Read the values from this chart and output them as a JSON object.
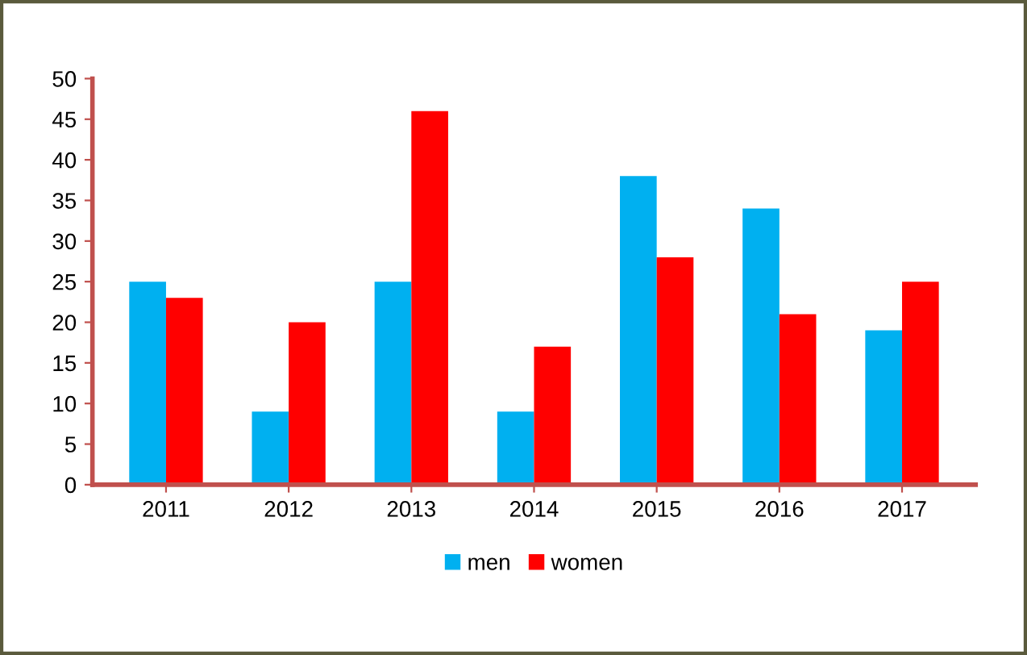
{
  "chart_data": {
    "type": "bar",
    "categories": [
      "2011",
      "2012",
      "2013",
      "2014",
      "2015",
      "2016",
      "2017"
    ],
    "series": [
      {
        "name": "men",
        "color": "#00b0f0",
        "values": [
          25,
          9,
          25,
          9,
          38,
          34,
          19
        ]
      },
      {
        "name": "women",
        "color": "#ff0000",
        "values": [
          23,
          20,
          46,
          17,
          28,
          21,
          25
        ]
      }
    ],
    "ylim": [
      0,
      50
    ],
    "yticks": [
      0,
      5,
      10,
      15,
      20,
      25,
      30,
      35,
      40,
      45,
      50
    ],
    "grid": false,
    "legend": "bottom"
  }
}
